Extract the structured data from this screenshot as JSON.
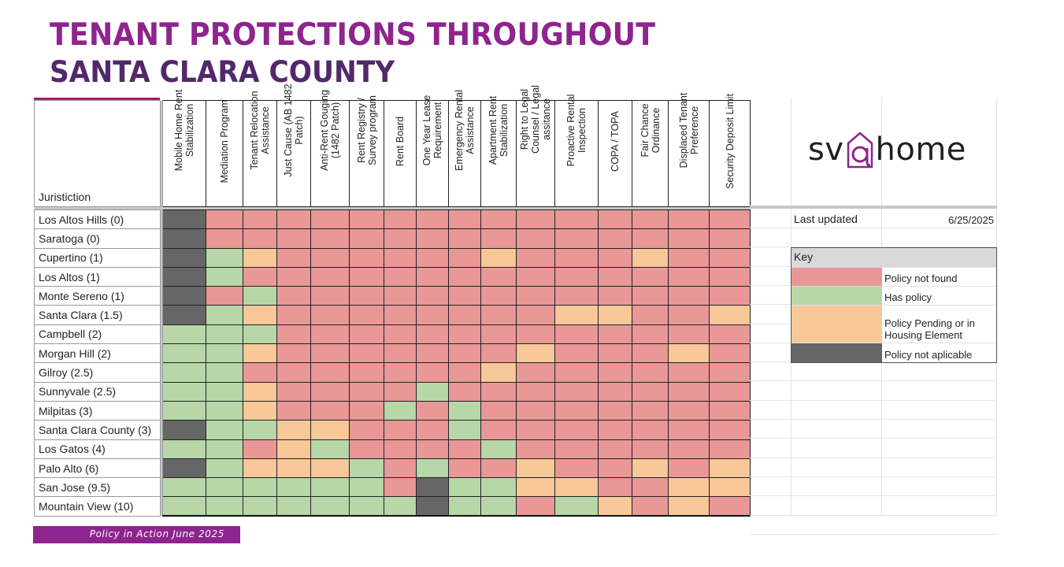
{
  "title": {
    "line1": "TENANT PROTECTIONS THROUGHOUT",
    "line2": "SANTA CLARA COUNTY"
  },
  "table": {
    "jurisdiction_header": "Juristiction",
    "columns": [
      "Mobile Home Rent Stabilization",
      "Mediation Program",
      "Tenant Relocation Assistance",
      "Just Cause (AB 1482 Patch)",
      "Anti-Rent Gouging (1482 Patch)",
      "Rent Registry / Survey program",
      "Rent Board",
      "One Year Lease Requirement",
      "Emergency Rental Assistance",
      "Apartment Rent Stabilization",
      "Right to Legal Counsel / Legal assitance",
      "Proactive Rental Inspection",
      "COPA / TOPA",
      "Fair Chance Ordinance",
      "Displaced Tenant Preference",
      "Security Deposit Limit"
    ],
    "status_codes": {
      "R": "Policy not found",
      "G": "Has policy",
      "O": "Policy Pending or in Housing Element",
      "D": "Policy not aplicable"
    },
    "rows": [
      {
        "jurisdiction": "Los Altos Hills (0)",
        "cells": [
          "D",
          "R",
          "R",
          "R",
          "R",
          "R",
          "R",
          "R",
          "R",
          "R",
          "R",
          "R",
          "R",
          "R",
          "R",
          "R"
        ]
      },
      {
        "jurisdiction": "Saratoga (0)",
        "cells": [
          "D",
          "R",
          "R",
          "R",
          "R",
          "R",
          "R",
          "R",
          "R",
          "R",
          "R",
          "R",
          "R",
          "R",
          "R",
          "R"
        ]
      },
      {
        "jurisdiction": "Cupertino (1)",
        "cells": [
          "D",
          "G",
          "O",
          "R",
          "R",
          "R",
          "R",
          "R",
          "R",
          "O",
          "R",
          "R",
          "R",
          "O",
          "R",
          "R"
        ]
      },
      {
        "jurisdiction": "Los Altos (1)",
        "cells": [
          "D",
          "G",
          "R",
          "R",
          "R",
          "R",
          "R",
          "R",
          "R",
          "R",
          "R",
          "R",
          "R",
          "R",
          "R",
          "R"
        ]
      },
      {
        "jurisdiction": "Monte Sereno (1)",
        "cells": [
          "D",
          "R",
          "G",
          "R",
          "R",
          "R",
          "R",
          "R",
          "R",
          "R",
          "R",
          "R",
          "R",
          "R",
          "R",
          "R"
        ]
      },
      {
        "jurisdiction": "Santa Clara (1.5)",
        "cells": [
          "D",
          "G",
          "O",
          "R",
          "R",
          "R",
          "R",
          "R",
          "R",
          "R",
          "R",
          "O",
          "O",
          "R",
          "R",
          "O"
        ]
      },
      {
        "jurisdiction": "Campbell (2)",
        "cells": [
          "G",
          "G",
          "G",
          "R",
          "R",
          "R",
          "R",
          "R",
          "R",
          "R",
          "R",
          "R",
          "R",
          "R",
          "R",
          "R"
        ]
      },
      {
        "jurisdiction": "Morgan Hill (2)",
        "cells": [
          "G",
          "G",
          "O",
          "R",
          "R",
          "R",
          "R",
          "R",
          "R",
          "R",
          "O",
          "R",
          "R",
          "R",
          "O",
          "R"
        ]
      },
      {
        "jurisdiction": "Gilroy (2.5)",
        "cells": [
          "G",
          "G",
          "R",
          "R",
          "R",
          "R",
          "R",
          "R",
          "R",
          "O",
          "R",
          "R",
          "R",
          "R",
          "R",
          "R"
        ]
      },
      {
        "jurisdiction": "Sunnyvale (2.5)",
        "cells": [
          "G",
          "G",
          "O",
          "R",
          "R",
          "R",
          "R",
          "G",
          "R",
          "R",
          "R",
          "R",
          "R",
          "R",
          "R",
          "R"
        ]
      },
      {
        "jurisdiction": "Milpitas (3)",
        "cells": [
          "G",
          "G",
          "O",
          "R",
          "R",
          "R",
          "G",
          "R",
          "G",
          "R",
          "R",
          "R",
          "R",
          "R",
          "R",
          "R"
        ]
      },
      {
        "jurisdiction": "Santa Clara County (3)",
        "cells": [
          "D",
          "G",
          "G",
          "O",
          "O",
          "R",
          "R",
          "R",
          "G",
          "R",
          "R",
          "R",
          "R",
          "R",
          "R",
          "R"
        ]
      },
      {
        "jurisdiction": "Los Gatos (4)",
        "cells": [
          "G",
          "G",
          "R",
          "O",
          "G",
          "R",
          "R",
          "R",
          "R",
          "G",
          "R",
          "R",
          "R",
          "R",
          "R",
          "R"
        ]
      },
      {
        "jurisdiction": "Palo Alto (6)",
        "cells": [
          "D",
          "G",
          "O",
          "O",
          "O",
          "G",
          "R",
          "G",
          "R",
          "R",
          "O",
          "R",
          "R",
          "O",
          "R",
          "O"
        ]
      },
      {
        "jurisdiction": "San Jose (9.5)",
        "cells": [
          "G",
          "G",
          "G",
          "G",
          "G",
          "G",
          "R",
          "D",
          "G",
          "G",
          "O",
          "O",
          "R",
          "R",
          "O",
          "O"
        ]
      },
      {
        "jurisdiction": "Mountain View (10)",
        "cells": [
          "G",
          "G",
          "G",
          "G",
          "G",
          "G",
          "G",
          "D",
          "G",
          "G",
          "R",
          "G",
          "O",
          "R",
          "O",
          "R"
        ]
      }
    ]
  },
  "logo": {
    "prefix": "sv",
    "suffix": "home",
    "icon": "house-at-icon"
  },
  "last_updated": {
    "label": "Last updated",
    "value": "6/25/2025"
  },
  "key": {
    "title": "Key",
    "items": [
      {
        "code": "R",
        "label": "Policy not found"
      },
      {
        "code": "G",
        "label": "Has policy"
      },
      {
        "code": "O",
        "label": "Policy Pending or in Housing Element"
      },
      {
        "code": "D",
        "label": "Policy not aplicable"
      }
    ]
  },
  "colors": {
    "not_found": "#e99797",
    "has_policy": "#b7d7a8",
    "pending": "#f8c898",
    "not_applicable": "#666666",
    "brand_purple": "#8e248d",
    "brand_dark_purple": "#53286a"
  },
  "footer": {
    "label": "Policy in Action June 2025"
  }
}
